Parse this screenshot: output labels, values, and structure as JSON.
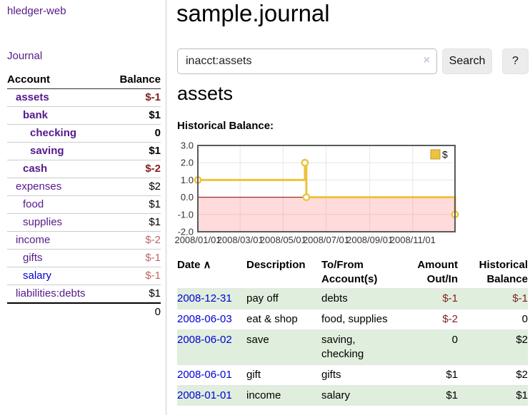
{
  "app": {
    "brand": "hledger-web"
  },
  "sidebar": {
    "journal_label": "Journal",
    "accounts": {
      "col_account": "Account",
      "col_balance": "Balance",
      "rows": [
        {
          "name": "assets",
          "depth": 1,
          "balance": "$-1",
          "bold": true,
          "balance_tone": "neg-strong",
          "link_tone": "purple"
        },
        {
          "name": "bank",
          "depth": 2,
          "balance": "$1",
          "bold": true,
          "balance_tone": "",
          "link_tone": "purple"
        },
        {
          "name": "checking",
          "depth": 3,
          "balance": "0",
          "bold": true,
          "balance_tone": "",
          "link_tone": "purple"
        },
        {
          "name": "saving",
          "depth": 3,
          "balance": "$1",
          "bold": true,
          "balance_tone": "",
          "link_tone": "purple"
        },
        {
          "name": "cash",
          "depth": 2,
          "balance": "$-2",
          "bold": true,
          "balance_tone": "neg-strong",
          "link_tone": "purple"
        },
        {
          "name": "expenses",
          "depth": 1,
          "balance": "$2",
          "bold": false,
          "balance_tone": "",
          "link_tone": "purple"
        },
        {
          "name": "food",
          "depth": 2,
          "balance": "$1",
          "bold": false,
          "balance_tone": "",
          "link_tone": "purple"
        },
        {
          "name": "supplies",
          "depth": 2,
          "balance": "$1",
          "bold": false,
          "balance_tone": "",
          "link_tone": "purple"
        },
        {
          "name": "income",
          "depth": 1,
          "balance": "$-2",
          "bold": false,
          "balance_tone": "neg-soft",
          "link_tone": "purple"
        },
        {
          "name": "gifts",
          "depth": 2,
          "balance": "$-1",
          "bold": false,
          "balance_tone": "neg-soft",
          "link_tone": "purple"
        },
        {
          "name": "salary",
          "depth": 2,
          "balance": "$-1",
          "bold": false,
          "balance_tone": "neg-soft",
          "link_tone": "blue"
        },
        {
          "name": "liabilities:debts",
          "depth": 1,
          "balance": "$1",
          "bold": false,
          "balance_tone": "",
          "link_tone": "purple"
        }
      ],
      "total": "0"
    }
  },
  "header": {
    "title": "sample.journal"
  },
  "search": {
    "value": "inacct:assets",
    "clear_icon": "×",
    "button_label": "Search",
    "help_label": "?"
  },
  "account_page": {
    "title": "assets",
    "chart_label": "Historical Balance:"
  },
  "chart_data": {
    "type": "line",
    "title": "Historical Balance",
    "step": true,
    "series": [
      {
        "name": "$",
        "color": "#edc240",
        "points": [
          {
            "date": "2008-01-01",
            "day": 0,
            "value": 1
          },
          {
            "date": "2008-06-01",
            "day": 152,
            "value": 2
          },
          {
            "date": "2008-06-03",
            "day": 154,
            "value": 0
          },
          {
            "date": "2008-12-31",
            "day": 365,
            "value": -1
          }
        ]
      }
    ],
    "x_ticks": [
      {
        "label": "2008/01/01",
        "day": 0
      },
      {
        "label": "2008/03/01",
        "day": 60
      },
      {
        "label": "2008/05/01",
        "day": 121
      },
      {
        "label": "2008/07/01",
        "day": 182
      },
      {
        "label": "2008/09/01",
        "day": 244
      },
      {
        "label": "2008/11/01",
        "day": 305
      }
    ],
    "y_ticks": [
      3.0,
      2.0,
      1.0,
      0.0,
      -1.0,
      -2.0
    ],
    "ylim": [
      -2,
      3
    ],
    "xlim_days": [
      0,
      365
    ],
    "legend_position": "top-right",
    "negative_region_fill": "rgba(255,110,110,0.25)",
    "zero_line_color": "#8b0000",
    "grid": true
  },
  "register": {
    "columns": [
      {
        "line1": "Date",
        "line2": "",
        "align": "left",
        "sortable": true
      },
      {
        "line1": "Description",
        "line2": "",
        "align": "left",
        "sortable": false
      },
      {
        "line1": "To/From",
        "line2": "Account(s)",
        "align": "left",
        "sortable": false
      },
      {
        "line1": "Amount",
        "line2": "Out/In",
        "align": "right",
        "sortable": false
      },
      {
        "line1": "Historical",
        "line2": "Balance",
        "align": "right",
        "sortable": false
      }
    ],
    "sort_icon": "∧",
    "rows": [
      {
        "date": "2008-12-31",
        "description": "pay off",
        "accounts": "debts",
        "amount": "$-1",
        "balance": "$-1",
        "amount_neg": true,
        "balance_neg": true
      },
      {
        "date": "2008-06-03",
        "description": "eat & shop",
        "accounts": "food, supplies",
        "amount": "$-2",
        "balance": "0",
        "amount_neg": true,
        "balance_neg": false
      },
      {
        "date": "2008-06-02",
        "description": "save",
        "accounts": "saving, checking",
        "amount": "0",
        "balance": "$2",
        "amount_neg": false,
        "balance_neg": false
      },
      {
        "date": "2008-06-01",
        "description": "gift",
        "accounts": "gifts",
        "amount": "$1",
        "balance": "$2",
        "amount_neg": false,
        "balance_neg": false
      },
      {
        "date": "2008-01-01",
        "description": "income",
        "accounts": "salary",
        "amount": "$1",
        "balance": "$1",
        "amount_neg": false,
        "balance_neg": false
      }
    ]
  }
}
